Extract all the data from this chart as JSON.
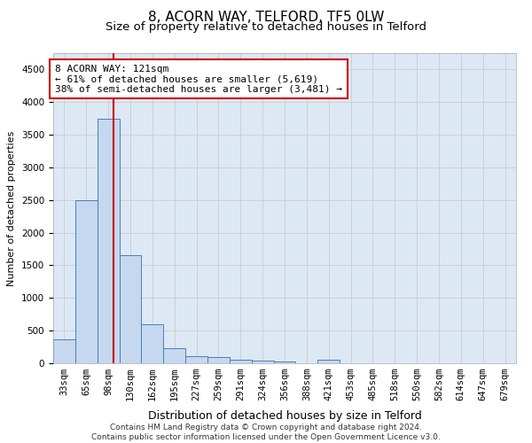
{
  "title": "8, ACORN WAY, TELFORD, TF5 0LW",
  "subtitle": "Size of property relative to detached houses in Telford",
  "xlabel": "Distribution of detached houses by size in Telford",
  "ylabel": "Number of detached properties",
  "bin_labels": [
    "33sqm",
    "65sqm",
    "98sqm",
    "130sqm",
    "162sqm",
    "195sqm",
    "227sqm",
    "259sqm",
    "291sqm",
    "324sqm",
    "356sqm",
    "388sqm",
    "421sqm",
    "453sqm",
    "485sqm",
    "518sqm",
    "550sqm",
    "582sqm",
    "614sqm",
    "647sqm",
    "679sqm"
  ],
  "bar_values": [
    370,
    2500,
    3750,
    1650,
    600,
    230,
    110,
    90,
    60,
    40,
    30,
    0,
    60,
    0,
    0,
    0,
    0,
    0,
    0,
    0,
    0
  ],
  "bar_color": "#c5d8f0",
  "bar_edge_color": "#4a7db5",
  "grid_color": "#cccccc",
  "background_color": "#dde8f5",
  "vline_x": 2.719,
  "vline_color": "#cc0000",
  "annotation_text": "8 ACORN WAY: 121sqm\n← 61% of detached houses are smaller (5,619)\n38% of semi-detached houses are larger (3,481) →",
  "annotation_box_color": "#ffffff",
  "annotation_box_edge": "#cc0000",
  "ylim": [
    0,
    4750
  ],
  "yticks": [
    0,
    500,
    1000,
    1500,
    2000,
    2500,
    3000,
    3500,
    4000,
    4500
  ],
  "footer_text": "Contains HM Land Registry data © Crown copyright and database right 2024.\nContains public sector information licensed under the Open Government Licence v3.0.",
  "title_fontsize": 11,
  "subtitle_fontsize": 9.5,
  "xlabel_fontsize": 9,
  "ylabel_fontsize": 8,
  "tick_fontsize": 7.5,
  "annotation_fontsize": 8,
  "footer_fontsize": 6.5
}
